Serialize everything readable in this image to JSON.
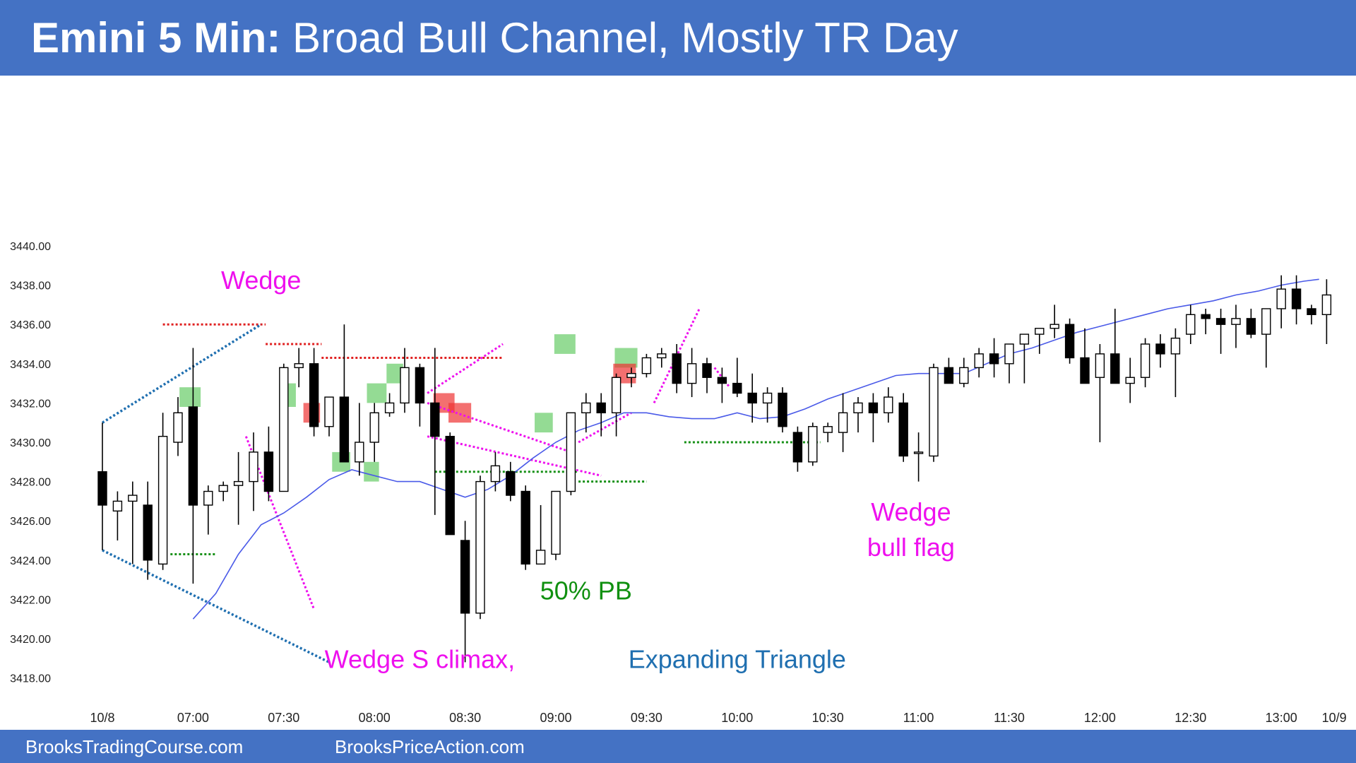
{
  "header": {
    "title_bold": "Emini 5 Min:",
    "title_rest": "Broad Bull Channel, Mostly TR Day"
  },
  "footer": {
    "left": "BrooksTradingCourse.com",
    "right": "BrooksPriceAction.com"
  },
  "colors": {
    "banner": "#4472c4",
    "ema": "#4a5ae8",
    "blue_lines": "#1f6fb0",
    "resistance": "#e02020",
    "support": "#169016",
    "magenta": "#ee10ee",
    "label_green": "#109010",
    "signal_green": "#66cc66",
    "signal_red": "#ee3333"
  },
  "chart_data": {
    "type": "candlestick",
    "title": "",
    "xlabel": "",
    "ylabel": "",
    "ylim": [
      3418,
      3440
    ],
    "y_ticks": [
      "3418.00",
      "3420.00",
      "3422.00",
      "3424.00",
      "3426.00",
      "3428.00",
      "3430.00",
      "3432.00",
      "3434.00",
      "3436.00",
      "3438.00",
      "3440.00"
    ],
    "x_tick_labels": [
      {
        "label": "10/8",
        "bar": 0
      },
      {
        "label": "07:00",
        "bar": 6
      },
      {
        "label": "07:30",
        "bar": 12
      },
      {
        "label": "08:00",
        "bar": 18
      },
      {
        "label": "08:30",
        "bar": 24
      },
      {
        "label": "09:00",
        "bar": 30
      },
      {
        "label": "09:30",
        "bar": 36
      },
      {
        "label": "10:00",
        "bar": 42
      },
      {
        "label": "10:30",
        "bar": 48
      },
      {
        "label": "11:00",
        "bar": 54
      },
      {
        "label": "11:30",
        "bar": 60
      },
      {
        "label": "12:00",
        "bar": 66
      },
      {
        "label": "12:30",
        "bar": 72
      },
      {
        "label": "13:00",
        "bar": 78
      },
      {
        "label": "10/9",
        "bar": 81.5
      }
    ],
    "bars": [
      [
        3428.5,
        3431.0,
        3424.5,
        3426.8
      ],
      [
        3426.5,
        3427.5,
        3425.0,
        3427.0
      ],
      [
        3427.0,
        3428.0,
        3423.8,
        3427.3
      ],
      [
        3426.8,
        3428.0,
        3423.0,
        3424.0
      ],
      [
        3423.8,
        3431.5,
        3423.5,
        3430.3
      ],
      [
        3430.0,
        3432.3,
        3429.3,
        3431.5
      ],
      [
        3431.8,
        3434.8,
        3422.8,
        3426.8
      ],
      [
        3426.8,
        3427.8,
        3425.3,
        3427.5
      ],
      [
        3427.5,
        3428.0,
        3427.0,
        3427.8
      ],
      [
        3427.8,
        3429.5,
        3425.8,
        3428.0
      ],
      [
        3428.0,
        3430.5,
        3426.5,
        3429.5
      ],
      [
        3429.5,
        3430.8,
        3427.0,
        3427.5
      ],
      [
        3427.5,
        3434.0,
        3427.5,
        3433.8
      ],
      [
        3433.8,
        3434.8,
        3432.8,
        3434.0
      ],
      [
        3434.0,
        3434.8,
        3430.3,
        3430.8
      ],
      [
        3430.8,
        3432.3,
        3430.3,
        3432.3
      ],
      [
        3432.3,
        3436.0,
        3429.5,
        3429.0
      ],
      [
        3429.0,
        3432.0,
        3428.3,
        3430.0
      ],
      [
        3430.0,
        3432.0,
        3429.0,
        3431.5
      ],
      [
        3431.5,
        3432.5,
        3431.3,
        3432.0
      ],
      [
        3432.0,
        3434.8,
        3431.5,
        3433.8
      ],
      [
        3433.8,
        3434.0,
        3430.8,
        3432.0
      ],
      [
        3432.0,
        3434.8,
        3426.3,
        3430.3
      ],
      [
        3430.3,
        3430.5,
        3426.8,
        3425.3
      ],
      [
        3425.0,
        3426.0,
        3418.8,
        3421.3
      ],
      [
        3421.3,
        3428.3,
        3421.0,
        3428.0
      ],
      [
        3428.0,
        3429.5,
        3427.5,
        3428.8
      ],
      [
        3428.5,
        3429.0,
        3427.0,
        3427.3
      ],
      [
        3427.5,
        3427.8,
        3423.5,
        3423.8
      ],
      [
        3423.8,
        3426.8,
        3423.8,
        3424.5
      ],
      [
        3424.3,
        3427.5,
        3424.0,
        3427.5
      ],
      [
        3427.5,
        3431.3,
        3427.3,
        3431.5
      ],
      [
        3431.5,
        3432.5,
        3430.5,
        3432.0
      ],
      [
        3432.0,
        3432.5,
        3430.3,
        3431.5
      ],
      [
        3431.5,
        3433.5,
        3430.3,
        3433.3
      ],
      [
        3433.3,
        3433.8,
        3432.8,
        3433.5
      ],
      [
        3433.5,
        3434.5,
        3433.3,
        3434.3
      ],
      [
        3434.3,
        3434.8,
        3433.8,
        3434.5
      ],
      [
        3434.5,
        3435.0,
        3432.5,
        3433.0
      ],
      [
        3433.0,
        3434.8,
        3432.3,
        3434.0
      ],
      [
        3434.0,
        3434.3,
        3432.5,
        3433.3
      ],
      [
        3433.3,
        3433.8,
        3432.0,
        3433.0
      ],
      [
        3433.0,
        3434.3,
        3432.3,
        3432.5
      ],
      [
        3432.5,
        3433.5,
        3431.0,
        3432.0
      ],
      [
        3432.0,
        3432.8,
        3431.0,
        3432.5
      ],
      [
        3432.5,
        3432.8,
        3430.5,
        3430.8
      ],
      [
        3430.5,
        3430.8,
        3428.5,
        3429.0
      ],
      [
        3429.0,
        3431.0,
        3428.8,
        3430.8
      ],
      [
        3430.5,
        3431.0,
        3430.0,
        3430.8
      ],
      [
        3430.5,
        3432.5,
        3429.5,
        3431.5
      ],
      [
        3431.5,
        3432.3,
        3430.5,
        3432.0
      ],
      [
        3432.0,
        3432.5,
        3430.0,
        3431.5
      ],
      [
        3431.5,
        3432.8,
        3431.0,
        3432.3
      ],
      [
        3432.0,
        3432.5,
        3429.0,
        3429.3
      ],
      [
        3429.5,
        3430.5,
        3428.0,
        3429.5
      ],
      [
        3429.3,
        3434.0,
        3429.0,
        3433.8
      ],
      [
        3433.8,
        3434.3,
        3433.0,
        3433.0
      ],
      [
        3433.0,
        3434.3,
        3432.8,
        3433.8
      ],
      [
        3433.8,
        3434.8,
        3433.3,
        3434.5
      ],
      [
        3434.5,
        3435.3,
        3433.3,
        3434.0
      ],
      [
        3434.0,
        3434.8,
        3433.0,
        3435.0
      ],
      [
        3435.0,
        3435.5,
        3433.0,
        3435.5
      ],
      [
        3435.5,
        3435.8,
        3434.5,
        3435.8
      ],
      [
        3435.8,
        3437.0,
        3435.3,
        3436.0
      ],
      [
        3436.0,
        3436.3,
        3434.0,
        3434.3
      ],
      [
        3434.3,
        3435.8,
        3433.0,
        3433.0
      ],
      [
        3433.3,
        3435.0,
        3430.0,
        3434.5
      ],
      [
        3434.5,
        3436.8,
        3433.3,
        3433.0
      ],
      [
        3433.0,
        3434.3,
        3432.0,
        3433.3
      ],
      [
        3433.3,
        3435.3,
        3432.8,
        3435.0
      ],
      [
        3435.0,
        3435.5,
        3433.8,
        3434.5
      ],
      [
        3434.5,
        3435.8,
        3432.3,
        3435.3
      ],
      [
        3435.5,
        3437.0,
        3435.0,
        3436.5
      ],
      [
        3436.5,
        3436.8,
        3435.5,
        3436.3
      ],
      [
        3436.3,
        3436.8,
        3434.5,
        3436.0
      ],
      [
        3436.0,
        3437.0,
        3434.8,
        3436.3
      ],
      [
        3436.3,
        3436.8,
        3435.3,
        3435.5
      ],
      [
        3435.5,
        3436.5,
        3433.8,
        3436.8
      ],
      [
        3436.8,
        3438.5,
        3435.8,
        3437.8
      ],
      [
        3437.8,
        3438.5,
        3436.0,
        3436.8
      ],
      [
        3436.8,
        3437.0,
        3436.0,
        3436.5
      ],
      [
        3436.5,
        3438.3,
        3435.0,
        3437.5
      ]
    ],
    "ema": [
      [
        6,
        3421.0
      ],
      [
        7.5,
        3422.3
      ],
      [
        9,
        3424.3
      ],
      [
        10.5,
        3425.8
      ],
      [
        12,
        3426.4
      ],
      [
        13.5,
        3427.2
      ],
      [
        15,
        3428.1
      ],
      [
        16.5,
        3428.6
      ],
      [
        18,
        3428.3
      ],
      [
        19.5,
        3428.0
      ],
      [
        21,
        3428.0
      ],
      [
        22.5,
        3427.6
      ],
      [
        24,
        3427.2
      ],
      [
        25.5,
        3427.6
      ],
      [
        27,
        3428.3
      ],
      [
        28.5,
        3429.2
      ],
      [
        30,
        3430.0
      ],
      [
        31.5,
        3430.6
      ],
      [
        33,
        3431.0
      ],
      [
        34.5,
        3431.5
      ],
      [
        36,
        3431.5
      ],
      [
        37.5,
        3431.3
      ],
      [
        39,
        3431.2
      ],
      [
        40.5,
        3431.2
      ],
      [
        42,
        3431.5
      ],
      [
        43.5,
        3431.2
      ],
      [
        45,
        3431.3
      ],
      [
        46.5,
        3431.7
      ],
      [
        48,
        3432.2
      ],
      [
        49.5,
        3432.6
      ],
      [
        51,
        3433.0
      ],
      [
        52.5,
        3433.4
      ],
      [
        54,
        3433.5
      ],
      [
        55.5,
        3433.5
      ],
      [
        57,
        3433.5
      ],
      [
        58.5,
        3434.0
      ],
      [
        60,
        3434.5
      ],
      [
        61.5,
        3434.8
      ],
      [
        63,
        3435.2
      ],
      [
        64.5,
        3435.6
      ],
      [
        66,
        3435.9
      ],
      [
        67.5,
        3436.2
      ],
      [
        69,
        3436.5
      ],
      [
        70.5,
        3436.8
      ],
      [
        72,
        3437.0
      ],
      [
        73.5,
        3437.2
      ],
      [
        75,
        3437.5
      ],
      [
        76.5,
        3437.7
      ],
      [
        78,
        3438.0
      ],
      [
        79.5,
        3438.2
      ],
      [
        80.5,
        3438.3
      ]
    ],
    "resistance_lines": [
      {
        "x1": 4,
        "x2": 10.8,
        "y": 3436.0
      },
      {
        "x1": 10.8,
        "x2": 14.5,
        "y": 3435.0
      },
      {
        "x1": 14.5,
        "x2": 26.5,
        "y": 3434.3
      }
    ],
    "support_lines": [
      {
        "x1": 4.5,
        "x2": 7.5,
        "y": 3424.3
      },
      {
        "x1": 22,
        "x2": 31.5,
        "y": 3428.5
      },
      {
        "x1": 31.5,
        "x2": 36,
        "y": 3428.0
      },
      {
        "x1": 38.5,
        "x2": 47.5,
        "y": 3430.0
      }
    ],
    "blue_lines": [
      [
        [
          0,
          3431.0
        ],
        [
          10.5,
          3436.0
        ]
      ],
      [
        [
          0,
          3424.5
        ],
        [
          15,
          3418.8
        ]
      ]
    ],
    "magenta_lines": [
      [
        [
          9.5,
          3430.3
        ],
        [
          14,
          3421.5
        ]
      ],
      [
        [
          21.5,
          3432.5
        ],
        [
          26.5,
          3435.0
        ]
      ],
      [
        [
          21.5,
          3432.0
        ],
        [
          31,
          3429.5
        ]
      ],
      [
        [
          21.5,
          3430.3
        ],
        [
          33,
          3428.3
        ]
      ],
      [
        [
          31.5,
          3430.0
        ],
        [
          35,
          3431.5
        ]
      ],
      [
        [
          36.5,
          3432.0
        ],
        [
          39.5,
          3436.8
        ]
      ],
      [
        [
          40.5,
          3433.8
        ],
        [
          41.5,
          3432.8
        ]
      ]
    ],
    "green_boxes": [
      {
        "x1": 5.1,
        "x2": 6.5,
        "y1": 3431.8,
        "y2": 3432.8
      },
      {
        "x1": 11.7,
        "x2": 12.8,
        "y1": 3431.8,
        "y2": 3433.0
      },
      {
        "x1": 15.2,
        "x2": 16.4,
        "y1": 3428.5,
        "y2": 3429.5
      },
      {
        "x1": 17.3,
        "x2": 18.3,
        "y1": 3428.0,
        "y2": 3429.0
      },
      {
        "x1": 17.5,
        "x2": 18.8,
        "y1": 3432.0,
        "y2": 3433.0
      },
      {
        "x1": 18.8,
        "x2": 19.9,
        "y1": 3433.0,
        "y2": 3434.0
      },
      {
        "x1": 28.6,
        "x2": 29.8,
        "y1": 3430.5,
        "y2": 3431.5
      },
      {
        "x1": 29.9,
        "x2": 31.3,
        "y1": 3434.5,
        "y2": 3435.5
      },
      {
        "x1": 33.9,
        "x2": 35.4,
        "y1": 3433.8,
        "y2": 3434.8
      }
    ],
    "red_boxes": [
      {
        "x1": 13.3,
        "x2": 14.4,
        "y1": 3431.0,
        "y2": 3432.0
      },
      {
        "x1": 21.9,
        "x2": 23.3,
        "y1": 3431.5,
        "y2": 3432.5
      },
      {
        "x1": 22.9,
        "x2": 24.4,
        "y1": 3431.0,
        "y2": 3432.0
      },
      {
        "x1": 33.8,
        "x2": 35.3,
        "y1": 3433.0,
        "y2": 3434.0
      }
    ],
    "annotations": [
      {
        "text": "Wedge",
        "x": 10.5,
        "y": 3437.8,
        "color": "magenta"
      },
      {
        "text": "Wedge",
        "x": 53.5,
        "y": 3426.0,
        "color": "magenta"
      },
      {
        "text": "bull flag",
        "x": 53.5,
        "y": 3424.2,
        "color": "magenta"
      },
      {
        "text": "50% PB",
        "x": 32.0,
        "y": 3422.0,
        "color": "label_green"
      },
      {
        "text": "Wedge S climax,",
        "x": 21.0,
        "y": 3418.5,
        "color": "magenta"
      },
      {
        "text": "Expanding Triangle",
        "x": 42.0,
        "y": 3418.5,
        "color": "blue_lines"
      }
    ]
  }
}
